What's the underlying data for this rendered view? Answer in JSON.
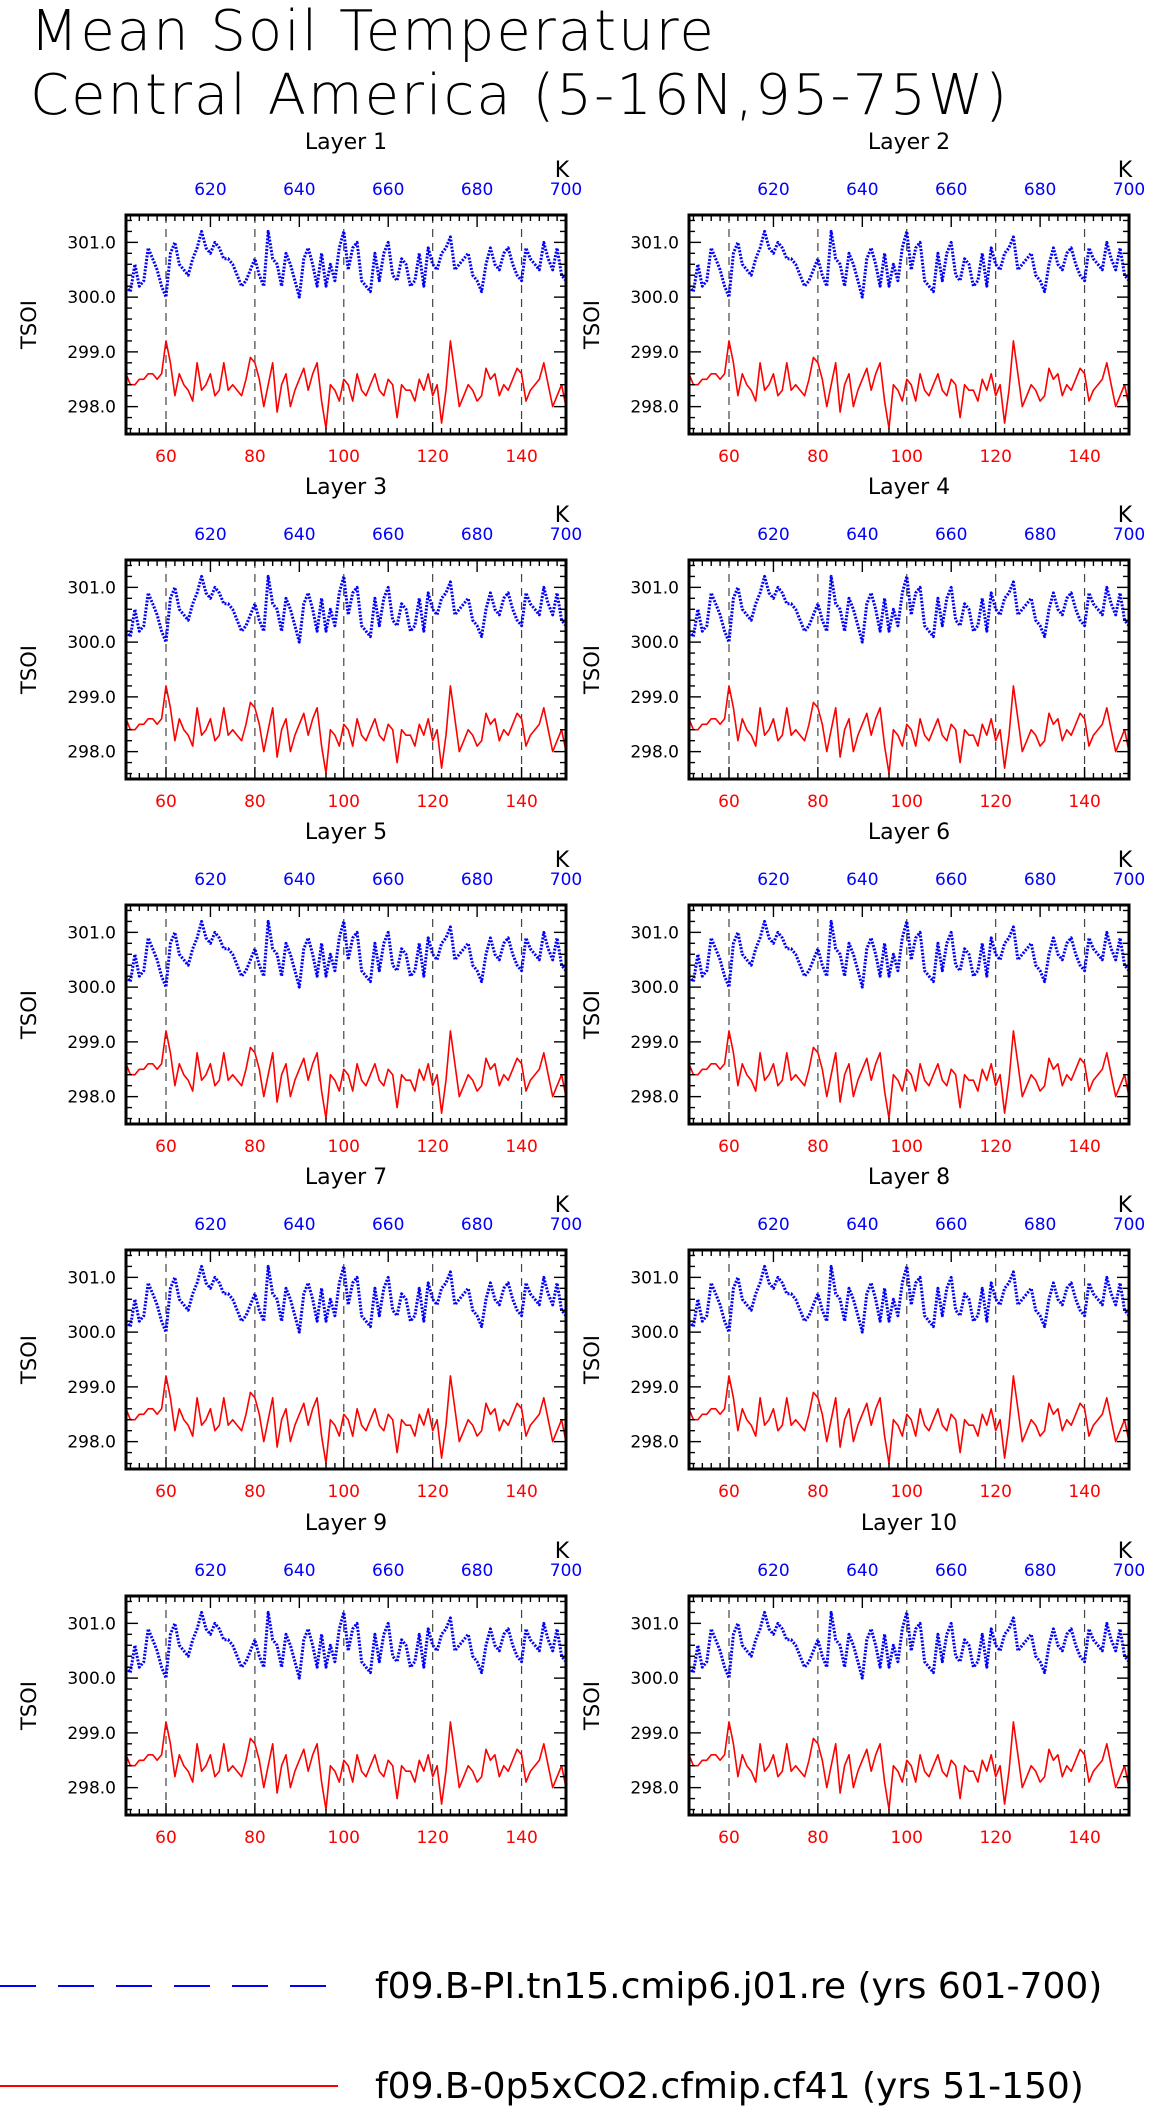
{
  "title": {
    "line1": "Mean Soil Temperature",
    "line2": "Central America (5-16N,95-75W)"
  },
  "axes": {
    "ylabel": "TSOI",
    "top_axis_unit": "K",
    "bottom_ticks": [
      "60",
      "80",
      "100",
      "120",
      "140"
    ],
    "top_ticks": [
      "620",
      "640",
      "660",
      "680",
      "700"
    ],
    "y_ticks": [
      "298.0",
      "299.0",
      "300.0",
      "301.0"
    ],
    "bottom_tick_color": "#ff0000",
    "top_tick_color": "#0000ff"
  },
  "legend": [
    {
      "label": "f09.B-PI.tn15.cmip6.j01.re (yrs 601-700)",
      "color": "#0000ff",
      "dash": "long-dash"
    },
    {
      "label": "f09.B-0p5xCO2.cfmip.cf41 (yrs 51-150)",
      "color": "#ff0000",
      "dash": "solid"
    }
  ],
  "chart_data": [
    {
      "title": "Layer 1"
    },
    {
      "title": "Layer 2"
    },
    {
      "title": "Layer 3"
    },
    {
      "title": "Layer 4"
    },
    {
      "title": "Layer 5"
    },
    {
      "title": "Layer 6"
    },
    {
      "title": "Layer 7"
    },
    {
      "title": "Layer 8"
    },
    {
      "title": "Layer 9"
    },
    {
      "title": "Layer 10"
    }
  ],
  "chart_common": {
    "type": "line",
    "x_bottom_range": [
      51,
      150
    ],
    "x_top_range": [
      601,
      700
    ],
    "ylim": [
      297.5,
      301.5
    ],
    "vertical_reference_lines_x": [
      60,
      80,
      100,
      120,
      140
    ],
    "series": [
      {
        "name": "f09.B-PI.tn15.cmip6.j01.re (yrs 601-700)",
        "color": "#0000ff",
        "x_start": 601,
        "values": [
          300.2,
          300.1,
          300.6,
          300.2,
          300.3,
          300.9,
          300.7,
          300.5,
          300.2,
          300.0,
          300.8,
          301.0,
          300.6,
          300.5,
          300.4,
          300.7,
          300.9,
          301.2,
          300.9,
          300.8,
          301.0,
          300.9,
          300.7,
          300.7,
          300.6,
          300.4,
          300.2,
          300.3,
          300.5,
          300.7,
          300.4,
          300.2,
          301.2,
          300.7,
          300.6,
          300.2,
          300.8,
          300.6,
          300.3,
          300.0,
          300.7,
          300.9,
          300.6,
          300.2,
          300.8,
          300.2,
          300.6,
          300.3,
          300.9,
          301.2,
          300.5,
          300.9,
          301.0,
          300.3,
          300.2,
          300.1,
          300.8,
          300.3,
          300.8,
          301.0,
          300.4,
          300.3,
          300.7,
          300.6,
          300.2,
          300.3,
          300.8,
          300.2,
          300.9,
          300.6,
          300.5,
          300.8,
          300.9,
          301.1,
          300.5,
          300.6,
          300.7,
          300.8,
          300.4,
          300.3,
          300.1,
          300.6,
          300.9,
          300.6,
          300.5,
          300.8,
          300.9,
          300.6,
          300.4,
          300.3,
          300.9,
          300.7,
          300.6,
          300.5,
          301.0,
          300.7,
          300.5,
          300.9,
          300.4,
          300.3
        ]
      },
      {
        "name": "f09.B-0p5xCO2.cfmip.cf41 (yrs 51-150)",
        "color": "#ff0000",
        "x_start": 51,
        "values": [
          298.6,
          298.4,
          298.4,
          298.5,
          298.5,
          298.6,
          298.6,
          298.5,
          298.6,
          299.2,
          298.8,
          298.2,
          298.6,
          298.4,
          298.3,
          298.1,
          298.8,
          298.3,
          298.4,
          298.6,
          298.2,
          298.3,
          298.8,
          298.3,
          298.4,
          298.3,
          298.2,
          298.5,
          298.9,
          298.8,
          298.5,
          298.0,
          298.4,
          298.8,
          297.9,
          298.4,
          298.6,
          298.0,
          298.3,
          298.5,
          298.7,
          298.3,
          298.6,
          298.8,
          298.1,
          297.6,
          298.4,
          298.3,
          298.1,
          298.5,
          298.4,
          298.1,
          298.6,
          298.3,
          298.2,
          298.4,
          298.6,
          298.3,
          298.2,
          298.5,
          298.4,
          297.8,
          298.4,
          298.3,
          298.3,
          298.1,
          298.5,
          298.3,
          298.6,
          298.2,
          298.4,
          297.7,
          298.3,
          299.2,
          298.6,
          298.0,
          298.2,
          298.4,
          298.3,
          298.1,
          298.2,
          298.7,
          298.5,
          298.6,
          298.2,
          298.4,
          298.3,
          298.5,
          298.7,
          298.6,
          298.1,
          298.3,
          298.4,
          298.5,
          298.8,
          298.4,
          298.0,
          298.2,
          298.4,
          298.0
        ]
      }
    ]
  }
}
